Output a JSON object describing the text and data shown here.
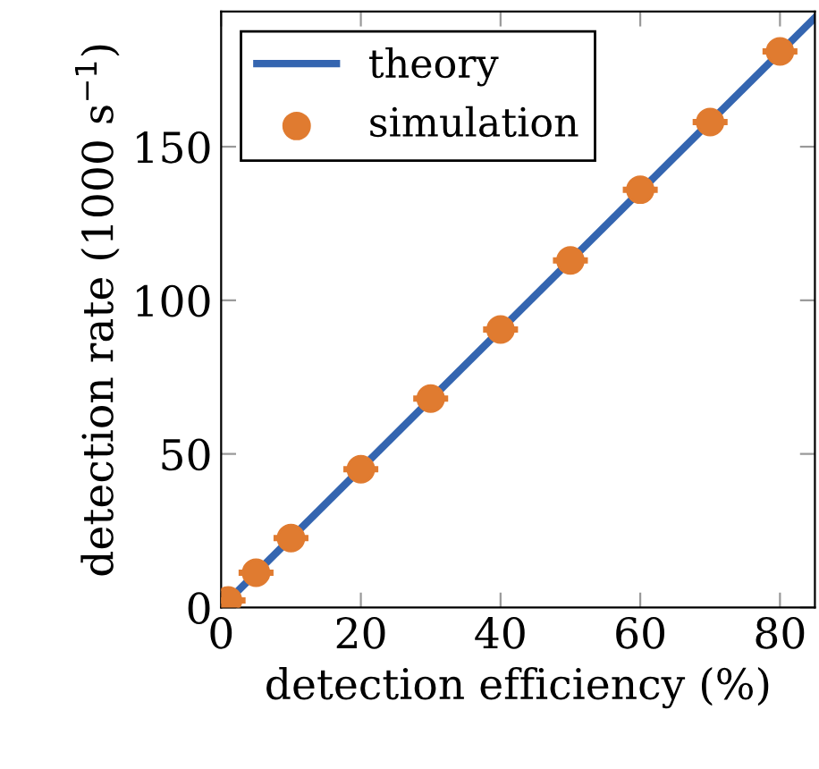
{
  "chart_data": {
    "type": "scatter",
    "xlabel": "detection efficiency (%)",
    "ylabel": "detection rate (1000 s$^{−1}$)",
    "xlim": [
      0,
      85
    ],
    "ylim": [
      0,
      194
    ],
    "xticks": [
      0,
      20,
      40,
      60,
      80
    ],
    "yticks": [
      0,
      50,
      100,
      150
    ],
    "grid": false,
    "legend": "top left",
    "series": [
      {
        "name": "theory",
        "type": "line",
        "color": "#3465b0",
        "x": [
          0,
          85
        ],
        "values": [
          0,
          192
        ],
        "marker": "none",
        "line_style": "solid"
      },
      {
        "name": "simulation",
        "color": "#e07b30",
        "marker": "circle",
        "x": [
          1,
          5,
          10,
          20,
          30,
          40,
          50,
          60,
          70,
          80
        ],
        "values": [
          2.3,
          11.3,
          22.6,
          45,
          68,
          90.5,
          113,
          136,
          158,
          181
        ],
        "xerrors": [
          2.5,
          2.5,
          2.5,
          2.5,
          2.5,
          2.5,
          2.5,
          2.5,
          2.5,
          2.5
        ]
      }
    ]
  }
}
